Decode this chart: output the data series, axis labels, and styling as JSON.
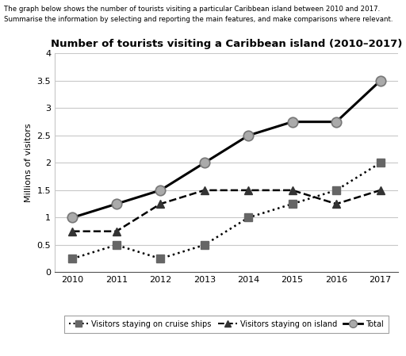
{
  "title": "Number of tourists visiting a Caribbean island (2010–2017)",
  "ylabel": "Millions of visitors",
  "header_line1": "The graph below shows the number of tourists visiting a particular Caribbean island between 2010 and 2017.",
  "header_line2": "Summarise the information by selecting and reporting the main features, and make comparisons where relevant.",
  "years": [
    2010,
    2011,
    2012,
    2013,
    2014,
    2015,
    2016,
    2017
  ],
  "cruise": [
    0.25,
    0.5,
    0.25,
    0.5,
    1.0,
    1.25,
    1.5,
    2.0
  ],
  "island": [
    0.75,
    0.75,
    1.25,
    1.5,
    1.5,
    1.5,
    1.25,
    1.5
  ],
  "total": [
    1.0,
    1.25,
    1.5,
    2.0,
    2.5,
    2.75,
    2.75,
    3.5
  ],
  "ylim": [
    0,
    4
  ],
  "yticks": [
    0,
    0.5,
    1.0,
    1.5,
    2.0,
    2.5,
    3.0,
    3.5,
    4.0
  ],
  "ytick_labels": [
    "0",
    "0.5",
    "1",
    "1.5",
    "2",
    "2.5",
    "3",
    "3.5",
    "4"
  ],
  "background_color": "#ffffff",
  "line_color": "#000000",
  "grid_color": "#c8c8c8",
  "cruise_marker_color": "#666666",
  "island_marker_color": "#333333",
  "total_marker_color": "#aaaaaa"
}
